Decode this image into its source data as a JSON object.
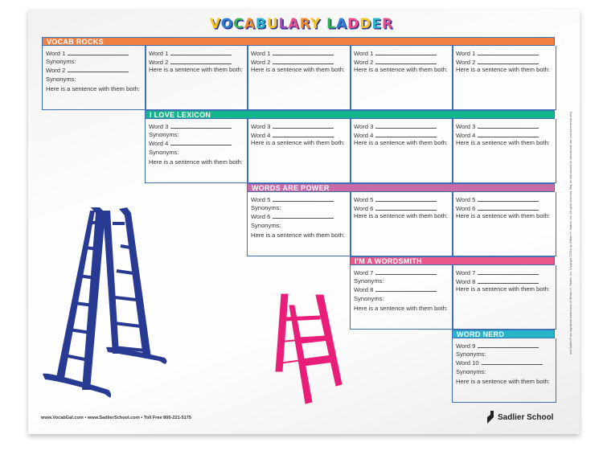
{
  "title": "VOCABULARY LADDER",
  "title_colors": [
    "#f5c51b",
    "#2f7fd1",
    "#35b05a",
    "#f08a2a",
    "#2bb5c9",
    "#f5c51b",
    "#9a4fb0",
    "#e84f8c",
    "#f08a2a",
    "#f5c51b",
    "#ffffff",
    "#35b05a",
    "#2f7fd1",
    "#e84f8c",
    "#f5c51b",
    "#2bb5c9",
    "#e84f8c"
  ],
  "sentence_label": "Here is a sentence with them both:",
  "synonyms_label": "Synonyms:",
  "rows": [
    {
      "title": "VOCAB ROCKS",
      "color": "#f08043",
      "word_a": "Word 1",
      "word_b": "Word 2"
    },
    {
      "title": "I LOVE LEXICON",
      "color": "#14b48c",
      "word_a": "Word 3",
      "word_b": "Word 4"
    },
    {
      "title": "WORDS ARE POWER",
      "color": "#c96aa8",
      "word_a": "Word 5",
      "word_b": "Word 6"
    },
    {
      "title": "I'M A WORDSMITH",
      "color": "#e9578a",
      "word_a": "Word 7",
      "word_b": "Word 8"
    },
    {
      "title": "WORD NERD",
      "color": "#27b3c8",
      "word_a": "Word 9",
      "word_b": "Word 10"
    }
  ],
  "ladder_colors": {
    "blue": "#283a92",
    "pink": "#e91e78"
  },
  "footer": "www.VocabGal.com  •  www.SadlierSchool.com  •  Toll Free 800-221-5175",
  "logo": "Sadlier School",
  "copyright": "and Sadlier® are registered trademarks of William H. Sadlier, Inc.    Copyright ©2016 by William H. Sadlier, Inc. All rights reserved.    May be reproduced for educational use (not commercial use)"
}
